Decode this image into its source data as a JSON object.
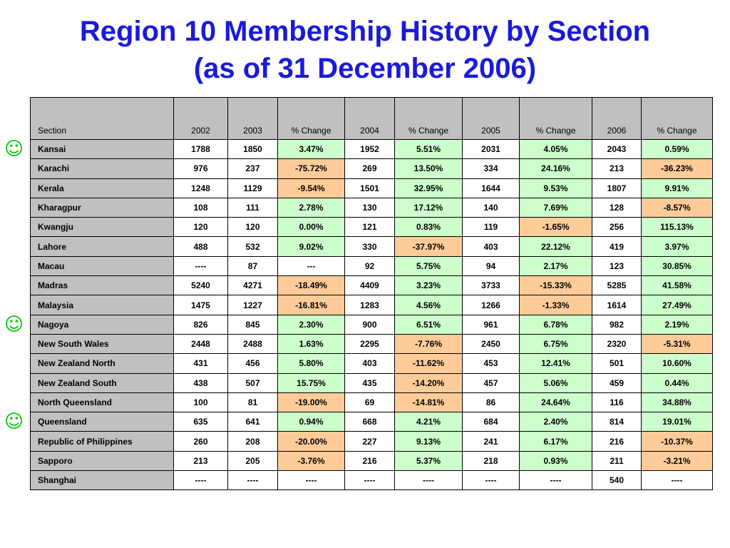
{
  "title": {
    "line1": "Region 10 Membership History by Section",
    "line2": "(as of 31 December 2006)"
  },
  "icons": {
    "smiley": "smiley-face-icon",
    "smiley_glyph": "☺",
    "smiley_color": "#00c800"
  },
  "colors": {
    "header_bg": "#c0c0c0",
    "positive_bg": "#ccffcc",
    "negative_bg": "#ffcc99",
    "title": "#1a1adc"
  },
  "table": {
    "headers": [
      "Section",
      "2002",
      "2003",
      "% Change",
      "2004",
      "% Change",
      "2005",
      "% Change",
      "2006",
      "% Change"
    ],
    "rows": [
      {
        "section": "Kansai",
        "v2002": "1788",
        "v2003": "1850",
        "c2003": "3.47%",
        "v2004": "1952",
        "c2004": "5.51%",
        "v2005": "2031",
        "c2005": "4.05%",
        "v2006": "2043",
        "c2006": "0.59%",
        "smiley": true
      },
      {
        "section": "Karachi",
        "v2002": "976",
        "v2003": "237",
        "c2003": "-75.72%",
        "v2004": "269",
        "c2004": "13.50%",
        "v2005": "334",
        "c2005": "24.16%",
        "v2006": "213",
        "c2006": "-36.23%"
      },
      {
        "section": "Kerala",
        "v2002": "1248",
        "v2003": "1129",
        "c2003": "-9.54%",
        "v2004": "1501",
        "c2004": "32.95%",
        "v2005": "1644",
        "c2005": "9.53%",
        "v2006": "1807",
        "c2006": "9.91%"
      },
      {
        "section": "Kharagpur",
        "v2002": "108",
        "v2003": "111",
        "c2003": "2.78%",
        "v2004": "130",
        "c2004": "17.12%",
        "v2005": "140",
        "c2005": "7.69%",
        "v2006": "128",
        "c2006": "-8.57%"
      },
      {
        "section": "Kwangju",
        "v2002": "120",
        "v2003": "120",
        "c2003": "0.00%",
        "v2004": "121",
        "c2004": "0.83%",
        "v2005": "119",
        "c2005": "-1.65%",
        "v2006": "256",
        "c2006": "115.13%"
      },
      {
        "section": "Lahore",
        "v2002": "488",
        "v2003": "532",
        "c2003": "9.02%",
        "v2004": "330",
        "c2004": "-37.97%",
        "v2005": "403",
        "c2005": "22.12%",
        "v2006": "419",
        "c2006": "3.97%"
      },
      {
        "section": "Macau",
        "v2002": "----",
        "v2003": "87",
        "c2003": "---",
        "v2004": "92",
        "c2004": "5.75%",
        "v2005": "94",
        "c2005": "2.17%",
        "v2006": "123",
        "c2006": "30.85%"
      },
      {
        "section": "Madras",
        "v2002": "5240",
        "v2003": "4271",
        "c2003": "-18.49%",
        "v2004": "4409",
        "c2004": "3.23%",
        "v2005": "3733",
        "c2005": "-15.33%",
        "v2006": "5285",
        "c2006": "41.58%"
      },
      {
        "section": "Malaysia",
        "v2002": "1475",
        "v2003": "1227",
        "c2003": "-16.81%",
        "v2004": "1283",
        "c2004": "4.56%",
        "v2005": "1266",
        "c2005": "-1.33%",
        "v2006": "1614",
        "c2006": "27.49%"
      },
      {
        "section": "Nagoya",
        "v2002": "826",
        "v2003": "845",
        "c2003": "2.30%",
        "v2004": "900",
        "c2004": "6.51%",
        "v2005": "961",
        "c2005": "6.78%",
        "v2006": "982",
        "c2006": "2.19%",
        "smiley": true
      },
      {
        "section": "New South Wales",
        "v2002": "2448",
        "v2003": "2488",
        "c2003": "1.63%",
        "v2004": "2295",
        "c2004": "-7.76%",
        "v2005": "2450",
        "c2005": "6.75%",
        "v2006": "2320",
        "c2006": "-5.31%"
      },
      {
        "section": "New Zealand North",
        "v2002": "431",
        "v2003": "456",
        "c2003": "5.80%",
        "v2004": "403",
        "c2004": "-11.62%",
        "v2005": "453",
        "c2005": "12.41%",
        "v2006": "501",
        "c2006": "10.60%"
      },
      {
        "section": "New Zealand South",
        "v2002": "438",
        "v2003": "507",
        "c2003": "15.75%",
        "v2004": "435",
        "c2004": "-14.20%",
        "v2005": "457",
        "c2005": "5.06%",
        "v2006": "459",
        "c2006": "0.44%"
      },
      {
        "section": "North Queensland",
        "v2002": "100",
        "v2003": "81",
        "c2003": "-19.00%",
        "v2004": "69",
        "c2004": "-14.81%",
        "v2005": "86",
        "c2005": "24.64%",
        "v2006": "116",
        "c2006": "34.88%"
      },
      {
        "section": "Queensland",
        "v2002": "635",
        "v2003": "641",
        "c2003": "0.94%",
        "v2004": "668",
        "c2004": "4.21%",
        "v2005": "684",
        "c2005": "2.40%",
        "v2006": "814",
        "c2006": "19.01%",
        "smiley": true
      },
      {
        "section": "Republic of Philippines",
        "v2002": "260",
        "v2003": "208",
        "c2003": "-20.00%",
        "v2004": "227",
        "c2004": "9.13%",
        "v2005": "241",
        "c2005": "6.17%",
        "v2006": "216",
        "c2006": "-10.37%"
      },
      {
        "section": "Sapporo",
        "v2002": "213",
        "v2003": "205",
        "c2003": "-3.76%",
        "v2004": "216",
        "c2004": "5.37%",
        "v2005": "218",
        "c2005": "0.93%",
        "v2006": "211",
        "c2006": "-3.21%"
      },
      {
        "section": "Shanghai",
        "v2002": "----",
        "v2003": "----",
        "c2003": "----",
        "v2004": "----",
        "c2004": "----",
        "v2005": "----",
        "c2005": "----",
        "v2006": "540",
        "c2006": "----"
      }
    ]
  }
}
